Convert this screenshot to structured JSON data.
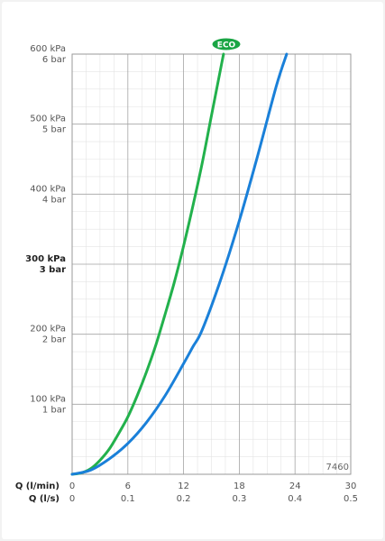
{
  "chart_data": {
    "type": "line",
    "title": "",
    "x": {
      "label_lpm": "Q (l/min)",
      "label_lps": "Q (l/s)",
      "range_lpm": [
        0,
        30
      ],
      "ticks_lpm": [
        "0",
        "6",
        "12",
        "18",
        "24",
        "30"
      ],
      "ticks_lps": [
        "0",
        "0.1",
        "0.2",
        "0.3",
        "0.4",
        "0.5"
      ]
    },
    "y": {
      "range_kpa": [
        0,
        600
      ],
      "ticks": [
        {
          "value": 100,
          "kpa": "100 kPa",
          "bar": "1 bar",
          "bold": false
        },
        {
          "value": 200,
          "kpa": "200 kPa",
          "bar": "2 bar",
          "bold": false
        },
        {
          "value": 300,
          "kpa": "300 kPa",
          "bar": "3 bar",
          "bold": true
        },
        {
          "value": 400,
          "kpa": "400 kPa",
          "bar": "4 bar",
          "bold": false
        },
        {
          "value": 500,
          "kpa": "500 kPa",
          "bar": "5 bar",
          "bold": false
        },
        {
          "value": 600,
          "kpa": "600 kPa",
          "bar": "6 bar",
          "bold": false
        }
      ]
    },
    "grid": true,
    "code_label": "7460",
    "eco_badge": "ECO",
    "series": [
      {
        "color": "#22b14c",
        "x": [
          0,
          1,
          2,
          3,
          4,
          5,
          6,
          7,
          8,
          9,
          10,
          11,
          12,
          13,
          14,
          15,
          16.3
        ],
        "y": [
          0,
          2,
          8,
          20,
          36,
          58,
          82,
          112,
          146,
          184,
          228,
          274,
          326,
          383,
          444,
          512,
          600
        ]
      },
      {
        "color": "#1a80d9",
        "x": [
          0,
          2,
          4,
          6,
          8,
          10,
          12,
          13,
          14,
          16,
          18,
          20,
          22,
          23.1
        ],
        "y": [
          0,
          6,
          22,
          44,
          74,
          112,
          158,
          182,
          206,
          278,
          362,
          456,
          555,
          600
        ]
      }
    ]
  }
}
